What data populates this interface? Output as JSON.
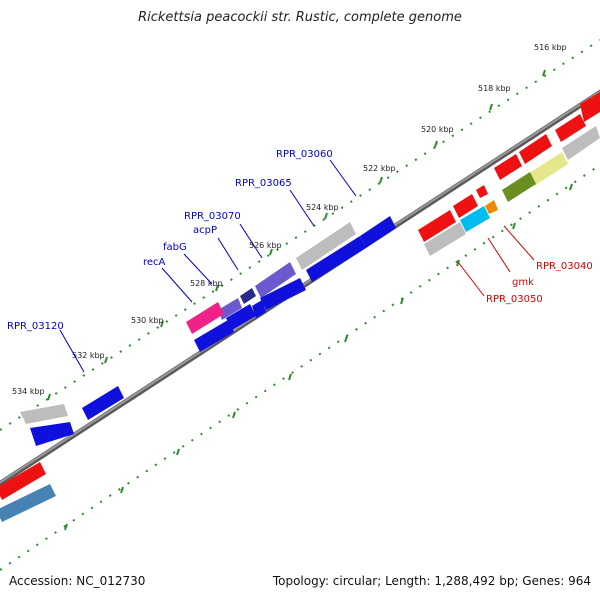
{
  "title": "Rickettsia peacockii str. Rustic, complete genome",
  "footer": {
    "accession": "Accession: NC_012730",
    "summary": "Topology: circular; Length: 1,288,492 bp; Genes: 964"
  },
  "ticks": [
    {
      "label": "516 kbp"
    },
    {
      "label": "518 kbp"
    },
    {
      "label": "520 kbp"
    },
    {
      "label": "522 kbp"
    },
    {
      "label": "524 kbp"
    },
    {
      "label": "526 kbp"
    },
    {
      "label": "528 kbp"
    },
    {
      "label": "530 kbp"
    },
    {
      "label": "532 kbp"
    },
    {
      "label": "534 kbp"
    }
  ],
  "gene_labels_forward": [
    {
      "text": "RPR_03060"
    },
    {
      "text": "RPR_03065"
    },
    {
      "text": "RPR_03070"
    },
    {
      "text": "acpP"
    },
    {
      "text": "fabG"
    },
    {
      "text": "recA"
    },
    {
      "text": "RPR_03120"
    }
  ],
  "gene_labels_reverse": [
    {
      "text": "RPR_03040"
    },
    {
      "text": "gmk"
    },
    {
      "text": "RPR_03050"
    }
  ],
  "colors": {
    "forward_label": "#0000cc",
    "reverse_label": "#dd0000",
    "backbone": "#7a7a7a",
    "tick": "#2e8b2e",
    "blue_gene": "#1010dd",
    "red_gene": "#ee1111",
    "gray_gene": "#bdbdbd",
    "magenta_gene": "#ee2288",
    "navy_gene": "#2a2a8a",
    "slate_gene": "#6a5acd",
    "cyan_gene": "#00bbee",
    "orange_gene": "#ee8800",
    "olive_gene": "#6b8e23",
    "khaki_gene": "#e6e68a",
    "steel_gene": "#4682b4",
    "pink_gene": "#ffb6c1"
  }
}
